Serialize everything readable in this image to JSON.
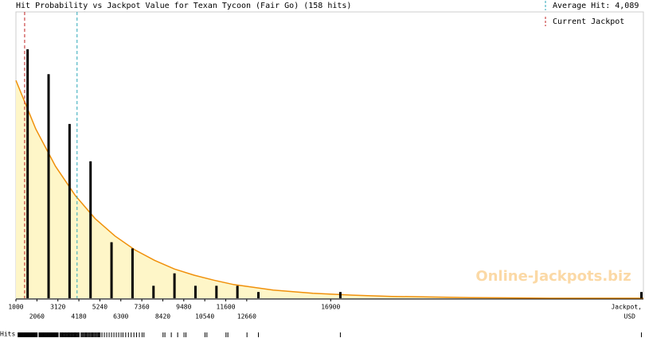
{
  "chart_data": {
    "type": "bar",
    "title": "Hit Probability vs Jackpot Value for Texan Tycoon (Fair Go) (158 hits)",
    "x_label_lines": [
      "Jackpot,",
      "USD"
    ],
    "rug_label": "Hits",
    "watermark": "Online-Jackpots.biz",
    "x": [
      1590,
      2650,
      3710,
      4770,
      5830,
      6890,
      7950,
      9010,
      10070,
      11130,
      12190,
      13250,
      17390,
      32600
    ],
    "values": [
      40,
      36,
      28,
      22,
      9,
      8,
      2,
      4,
      2,
      2,
      2,
      1,
      1,
      1
    ],
    "color": "#000000",
    "curve": {
      "x": [
        1000,
        2000,
        3000,
        4000,
        5000,
        6000,
        7000,
        8000,
        9000,
        10000,
        11000,
        12000,
        14000,
        16000,
        18000,
        20000,
        24000,
        28000,
        32700
      ],
      "values": [
        35,
        27.2,
        21.2,
        16.5,
        12.8,
        10,
        7.8,
        6.1,
        4.7,
        3.7,
        2.9,
        2.2,
        1.3,
        0.8,
        0.5,
        0.3,
        0.1,
        0,
        0
      ],
      "color": "#f0900a",
      "fill": "#fef6c8"
    },
    "reference_lines": [
      {
        "value": 4089,
        "label": "Average Hit: 4,089",
        "color": "#2aa6b8"
      },
      {
        "value": 1440,
        "label": "Current Jackpot",
        "color": "#c02020"
      }
    ],
    "xlim": [
      1000,
      32700
    ],
    "ylim": [
      0,
      46
    ],
    "xticks": [
      1000,
      2060,
      3120,
      4180,
      5240,
      6300,
      7360,
      8420,
      9480,
      10540,
      11600,
      12660,
      16900
    ]
  }
}
